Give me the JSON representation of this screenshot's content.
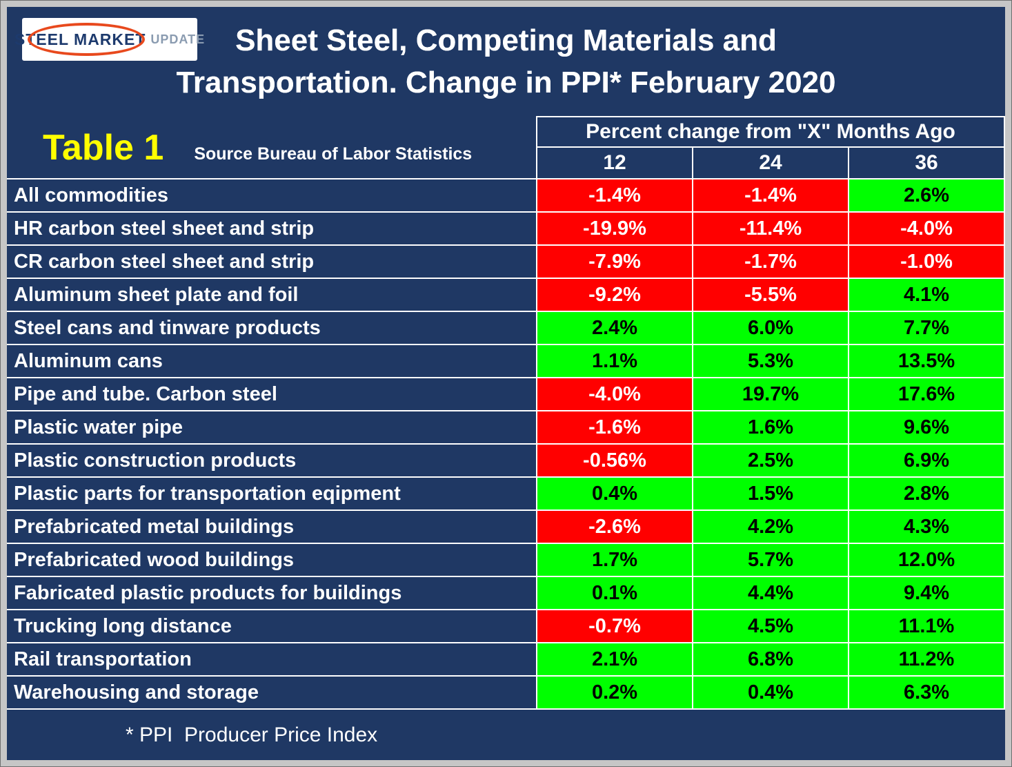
{
  "window": {
    "title_line1": "Sheet Steel, Competing Materials and",
    "title_line2": "Transportation. Change in PPI* February 2020"
  },
  "logo": {
    "steel": "STEEL",
    "market": "MARKET",
    "update": "UPDATE"
  },
  "table": {
    "label": "Table 1",
    "source": "Source Bureau of Labor Statistics",
    "group_header": "Percent change from \"X\" Months Ago",
    "columns": [
      "12",
      "24",
      "36"
    ]
  },
  "footer": {
    "note": "* PPI  Producer Price Index"
  },
  "colors": {
    "background_navy": "#1F3864",
    "negative_cell": "#FF0000",
    "positive_cell": "#00FF00",
    "table_label_yellow": "#FFFF00",
    "frame_gray": "#C6C6C6",
    "logo_oval_red": "#E8491D"
  },
  "chart_data": {
    "type": "table",
    "title": "Sheet Steel, Competing Materials and Transportation. Change in PPI* February 2020",
    "source": "Source Bureau of Labor Statistics",
    "column_group": "Percent change from \"X\" Months Ago",
    "columns": [
      "12",
      "24",
      "36"
    ],
    "rows": [
      {
        "label": "All commodities",
        "values": [
          "-1.4%",
          "-1.4%",
          "2.6%"
        ]
      },
      {
        "label": "HR carbon steel sheet and strip",
        "values": [
          "-19.9%",
          "-11.4%",
          "-4.0%"
        ]
      },
      {
        "label": "CR carbon steel sheet and strip",
        "values": [
          "-7.9%",
          "-1.7%",
          "-1.0%"
        ]
      },
      {
        "label": "Aluminum sheet plate and foil",
        "values": [
          "-9.2%",
          "-5.5%",
          "4.1%"
        ]
      },
      {
        "label": "Steel cans and tinware products",
        "values": [
          "2.4%",
          "6.0%",
          "7.7%"
        ]
      },
      {
        "label": "Aluminum cans",
        "values": [
          "1.1%",
          "5.3%",
          "13.5%"
        ]
      },
      {
        "label": "Pipe and tube. Carbon steel",
        "values": [
          "-4.0%",
          "19.7%",
          "17.6%"
        ]
      },
      {
        "label": "Plastic water pipe",
        "values": [
          "-1.6%",
          "1.6%",
          "9.6%"
        ]
      },
      {
        "label": "Plastic construction products",
        "values": [
          "-0.56%",
          "2.5%",
          "6.9%"
        ]
      },
      {
        "label": "Plastic parts for transportation eqipment",
        "values": [
          "0.4%",
          "1.5%",
          "2.8%"
        ]
      },
      {
        "label": "Prefabricated metal buildings",
        "values": [
          "-2.6%",
          "4.2%",
          "4.3%"
        ]
      },
      {
        "label": "Prefabricated wood buildings",
        "values": [
          "1.7%",
          "5.7%",
          "12.0%"
        ]
      },
      {
        "label": "Fabricated plastic products for buildings",
        "values": [
          "0.1%",
          "4.4%",
          "9.4%"
        ]
      },
      {
        "label": "Trucking long distance",
        "values": [
          "-0.7%",
          "4.5%",
          "11.1%"
        ]
      },
      {
        "label": "Rail transportation",
        "values": [
          "2.1%",
          "6.8%",
          "11.2%"
        ]
      },
      {
        "label": "Warehousing and storage",
        "values": [
          "0.2%",
          "0.4%",
          "6.3%"
        ]
      }
    ],
    "cell_color_rule": "negative values shown on red with white text, positive values on green with black text",
    "layout": "first column row labels on navy background, three numeric columns"
  }
}
